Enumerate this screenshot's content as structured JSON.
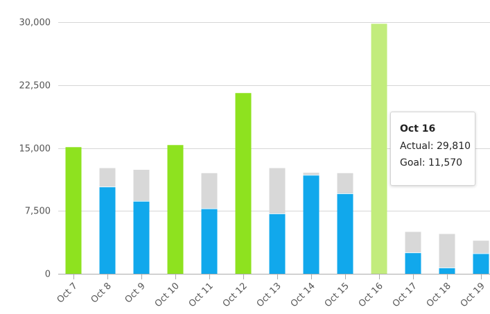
{
  "chart_data": {
    "type": "bar",
    "categories": [
      "Oct 7",
      "Oct 8",
      "Oct 9",
      "Oct 10",
      "Oct 11",
      "Oct 12",
      "Oct 13",
      "Oct 14",
      "Oct 15",
      "Oct 16",
      "Oct 17",
      "Oct 18",
      "Oct 19"
    ],
    "series": [
      {
        "values": [
          15100,
          10400,
          8700,
          15350,
          7800,
          21550,
          7200,
          11800,
          9600,
          29810,
          2550,
          750,
          2450
        ]
      },
      {
        "values": [
          0,
          12600,
          12400,
          0,
          12000,
          0,
          12600,
          12050,
          12000,
          11570,
          5000,
          4750,
          3950
        ]
      }
    ],
    "ylim": [
      0,
      30000
    ],
    "yticks": [
      0,
      7500,
      15000,
      22500,
      30000
    ],
    "ytick_labels": [
      "0",
      "7,500",
      "15,000",
      "22,500",
      "30,000"
    ],
    "xlabel": "",
    "ylabel": "",
    "title": "",
    "grid": true,
    "highlighted_index": 9,
    "colors": {
      "met": "#8ee21f",
      "met_highlight": "#c2ec7c",
      "below": "#11a8ec",
      "goal": "#d8d8d8",
      "grid": "#d6d6d6",
      "axis": "#aaaaaa"
    }
  },
  "tooltip": {
    "title": "Oct 16",
    "actual": "Actual: 29,810",
    "goal": "Goal: 11,570"
  }
}
